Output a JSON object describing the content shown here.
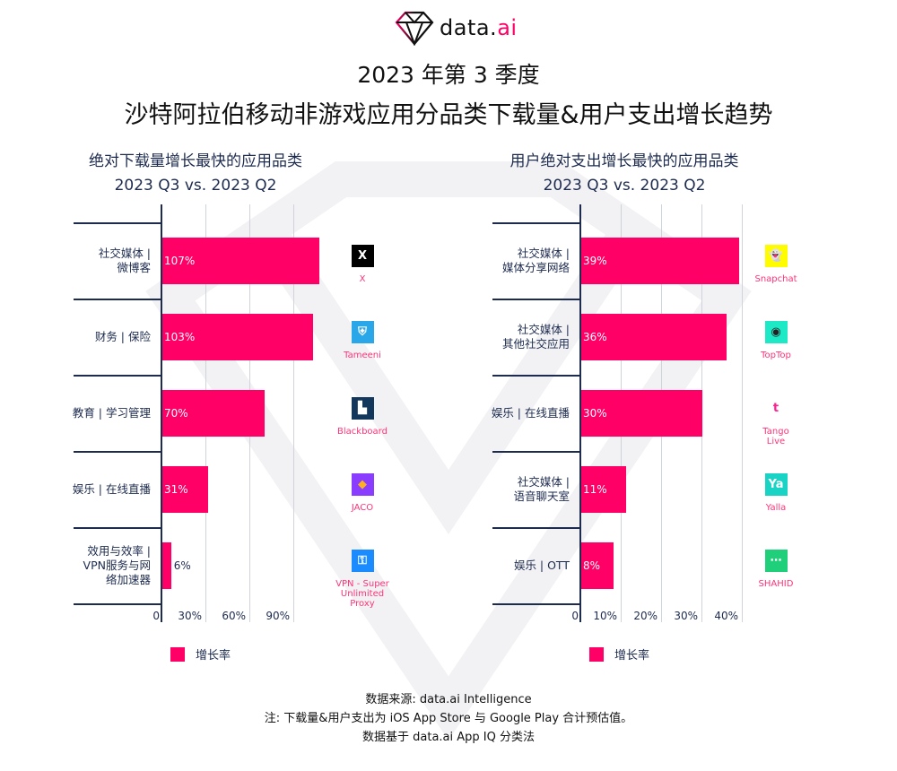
{
  "logo": {
    "text_main": "data.",
    "text_accent": "ai"
  },
  "title_line1": "2023 年第 3 季度",
  "title_line2": "沙特阿拉伯移动非游戏应用分品类下载量&用户支出增长趋势",
  "colors": {
    "bar": "#ff0066",
    "axis": "#1d2b4f",
    "app_name": "#ff3377"
  },
  "chart_data": [
    {
      "type": "bar",
      "orientation": "horizontal",
      "title": "绝对下载量增长最快的应用品类",
      "subtitle": "2023 Q3 vs. 2023 Q2",
      "categories": [
        "社交媒体 |\n微博客",
        "财务 | 保险",
        "教育 | 学习管理",
        "娱乐 | 在线直播",
        "效用与效率 |\nVPN服务与网\n络加速器"
      ],
      "series": [
        {
          "name": "增长率",
          "values": [
            107,
            103,
            70,
            31,
            6
          ]
        }
      ],
      "value_labels": [
        "107%",
        "103%",
        "70%",
        "31%",
        "6%"
      ],
      "xlim": [
        0,
        110
      ],
      "xticks": [
        "0",
        "30%",
        "60%",
        "90%"
      ],
      "xtick_values": [
        0,
        30,
        60,
        90
      ],
      "grid": true,
      "legend": "bottom-left",
      "top_apps": [
        {
          "name": "X",
          "icon": "x-app-icon",
          "color": "#000000"
        },
        {
          "name": "Tameeni",
          "icon": "tameeni-app-icon",
          "color": "#2aa7e8"
        },
        {
          "name": "Blackboard",
          "icon": "blackboard-app-icon",
          "color": "#14385c"
        },
        {
          "name": "JACO",
          "icon": "jaco-app-icon",
          "color": "#8b3dff"
        },
        {
          "name": "VPN - Super\nUnlimited\nProxy",
          "icon": "vpn-app-icon",
          "color": "#1a8cff"
        }
      ]
    },
    {
      "type": "bar",
      "orientation": "horizontal",
      "title": "用户绝对支出增长最快的应用品类",
      "subtitle": "2023 Q3 vs. 2023 Q2",
      "categories": [
        "社交媒体 |\n媒体分享网络",
        "社交媒体 |\n其他社交应用",
        "娱乐 | 在线直播",
        "社交媒体 |\n语音聊天室",
        "娱乐 | OTT"
      ],
      "series": [
        {
          "name": "增长率",
          "values": [
            39,
            36,
            30,
            11,
            8
          ]
        }
      ],
      "value_labels": [
        "39%",
        "36%",
        "30%",
        "11%",
        "8%"
      ],
      "xlim": [
        0,
        40
      ],
      "xticks": [
        "0",
        "10%",
        "20%",
        "30%",
        "40%"
      ],
      "xtick_values": [
        0,
        10,
        20,
        30,
        40
      ],
      "grid": true,
      "legend": "bottom-left",
      "top_apps": [
        {
          "name": "Snapchat",
          "icon": "snapchat-app-icon",
          "color": "#fffc00"
        },
        {
          "name": "TopTop",
          "icon": "toptop-app-icon",
          "color": "#1de9c6"
        },
        {
          "name": "Tango\nLive",
          "icon": "tango-app-icon",
          "color": "#ffffff"
        },
        {
          "name": "Yalla",
          "icon": "yalla-app-icon",
          "color": "#19d3c5"
        },
        {
          "name": "SHAHID",
          "icon": "shahid-app-icon",
          "color": "#1fcf7a"
        }
      ]
    }
  ],
  "footer": {
    "line1": "数据来源: data.ai Intelligence",
    "line2": "注: 下载量&用户支出为 iOS App Store 与 Google Play 合计预估值。",
    "line3": "数据基于 data.ai App IQ 分类法"
  }
}
